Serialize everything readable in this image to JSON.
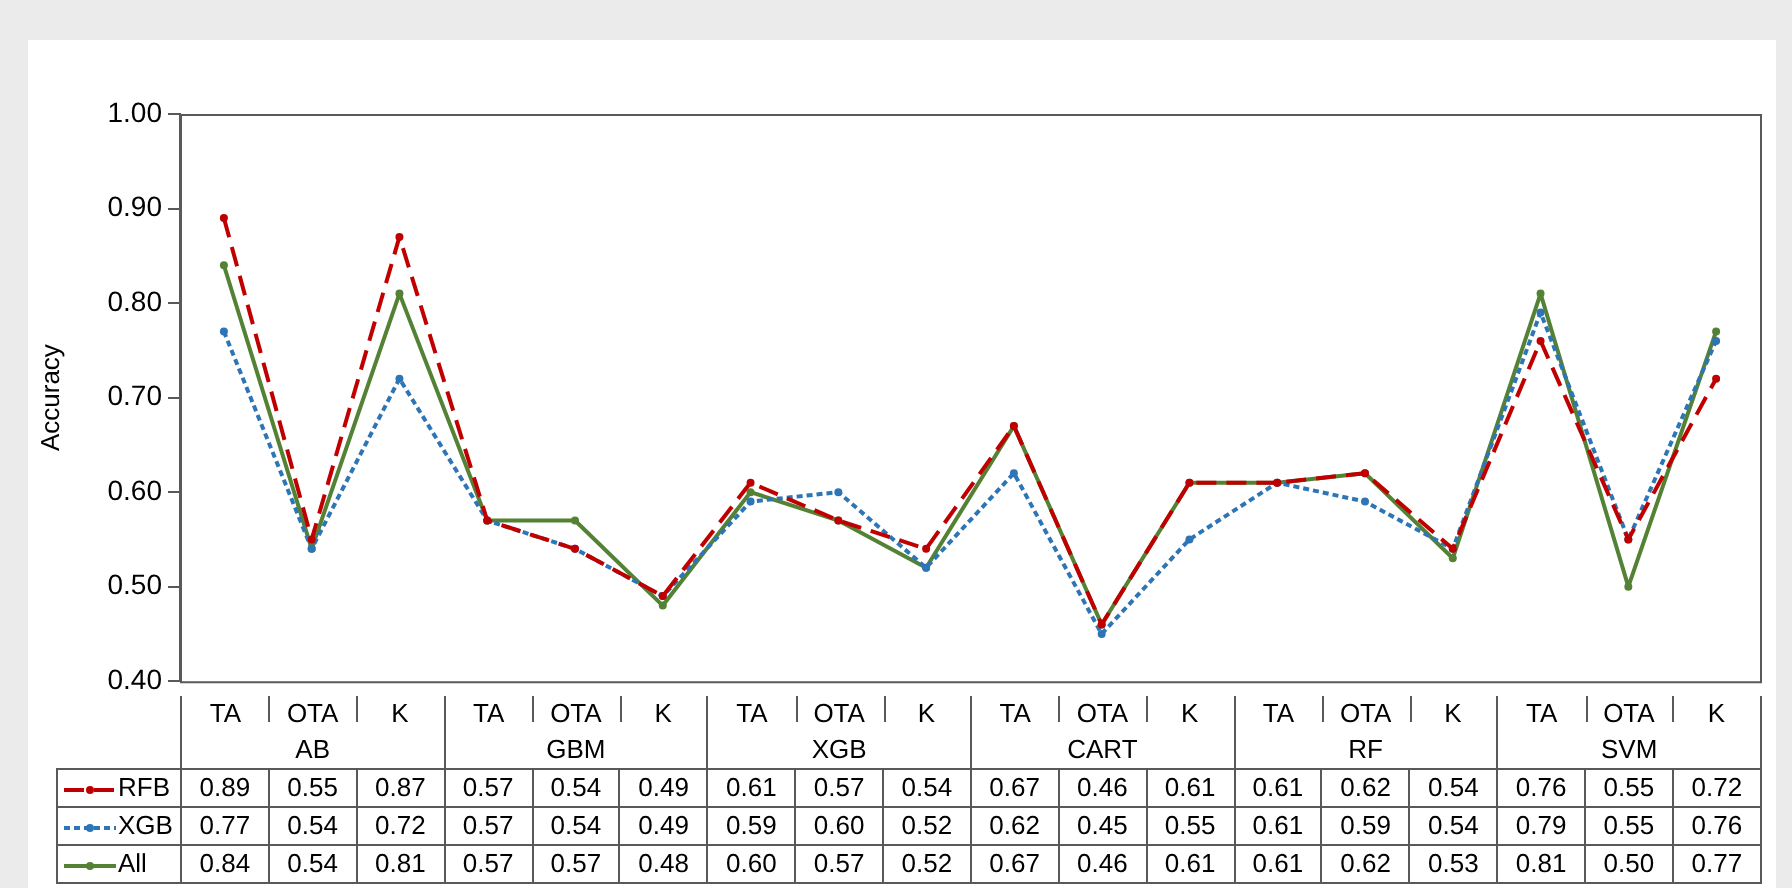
{
  "chart_data": {
    "type": "line",
    "ylabel": "Accuracy",
    "categories": [
      "TA",
      "OTA",
      "K",
      "TA",
      "OTA",
      "K",
      "TA",
      "OTA",
      "K",
      "TA",
      "OTA",
      "K",
      "TA",
      "OTA",
      "K",
      "TA",
      "OTA",
      "K"
    ],
    "annotations": [
      "AB",
      "GBM",
      "XGB",
      "CART",
      "RF",
      "SVM"
    ],
    "ylim": [
      0.4,
      1.0
    ],
    "yticks": [
      {
        "value": 0.4,
        "label": "0.40"
      },
      {
        "value": 0.5,
        "label": "0.50"
      },
      {
        "value": 0.6,
        "label": "0.60"
      },
      {
        "value": 0.7,
        "label": "0.70"
      },
      {
        "value": 0.8,
        "label": "0.80"
      },
      {
        "value": 0.9,
        "label": "0.90"
      },
      {
        "value": 1.0,
        "label": "1.00"
      }
    ],
    "legend": "bottom",
    "marker": "circle",
    "series": [
      {
        "name": "RFB",
        "color": "#c00000",
        "line_style": "dashed",
        "values": [
          0.89,
          0.55,
          0.87,
          0.57,
          0.54,
          0.49,
          0.61,
          0.57,
          0.54,
          0.67,
          0.46,
          0.61,
          0.61,
          0.62,
          0.54,
          0.76,
          0.55,
          0.72
        ],
        "value_labels": [
          "0.89",
          "0.55",
          "0.87",
          "0.57",
          "0.54",
          "0.49",
          "0.61",
          "0.57",
          "0.54",
          "0.67",
          "0.46",
          "0.61",
          "0.61",
          "0.62",
          "0.54",
          "0.76",
          "0.55",
          "0.72"
        ]
      },
      {
        "name": "XGB",
        "color": "#2e75b6",
        "line_style": "dotted",
        "values": [
          0.77,
          0.54,
          0.72,
          0.57,
          0.54,
          0.49,
          0.59,
          0.6,
          0.52,
          0.62,
          0.45,
          0.55,
          0.61,
          0.59,
          0.54,
          0.79,
          0.55,
          0.76
        ],
        "value_labels": [
          "0.77",
          "0.54",
          "0.72",
          "0.57",
          "0.54",
          "0.49",
          "0.59",
          "0.60",
          "0.52",
          "0.62",
          "0.45",
          "0.55",
          "0.61",
          "0.59",
          "0.54",
          "0.79",
          "0.55",
          "0.76"
        ]
      },
      {
        "name": "All",
        "color": "#548235",
        "line_style": "solid",
        "values": [
          0.84,
          0.54,
          0.81,
          0.57,
          0.57,
          0.48,
          0.6,
          0.57,
          0.52,
          0.67,
          0.46,
          0.61,
          0.61,
          0.62,
          0.53,
          0.81,
          0.5,
          0.77
        ],
        "value_labels": [
          "0.84",
          "0.54",
          "0.81",
          "0.57",
          "0.57",
          "0.48",
          "0.60",
          "0.57",
          "0.52",
          "0.67",
          "0.46",
          "0.61",
          "0.61",
          "0.62",
          "0.53",
          "0.81",
          "0.50",
          "0.77"
        ]
      }
    ]
  }
}
